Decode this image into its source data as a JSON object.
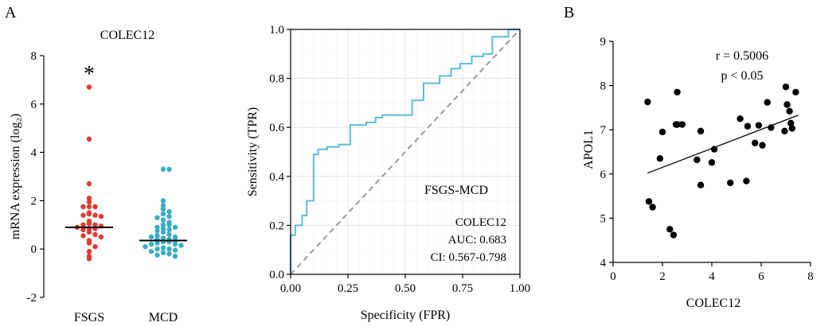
{
  "panel_labels": {
    "a": "A",
    "b": "B"
  },
  "chart_data": [
    {
      "type": "scatter",
      "name": "dot-plot",
      "title": "COLEC12",
      "ylabel": "mRNA expression (log₂)",
      "xlabel": "",
      "categories": [
        "FSGS",
        "MCD"
      ],
      "ylim": [
        -2,
        8
      ],
      "yticks": [
        "-2",
        "0",
        "2",
        "4",
        "6",
        "8"
      ],
      "annotation": "*",
      "series": [
        {
          "name": "FSGS",
          "color": "#e03a30",
          "median": 0.9,
          "values": [
            6.7,
            4.55,
            2.7,
            2.1,
            1.95,
            1.75,
            1.75,
            1.75,
            1.5,
            1.45,
            1.4,
            1.4,
            1.35,
            1.15,
            1.05,
            1.0,
            1.0,
            0.95,
            0.9,
            0.85,
            0.85,
            0.8,
            0.7,
            0.6,
            0.55,
            0.5,
            0.35,
            0.25,
            0.1,
            -0.1,
            -0.3,
            -0.4
          ]
        },
        {
          "name": "MCD",
          "color": "#3aaec2",
          "median": 0.35,
          "values": [
            3.3,
            3.3,
            2.0,
            1.8,
            1.65,
            1.55,
            1.45,
            1.35,
            1.3,
            1.2,
            1.1,
            1.0,
            1.0,
            0.9,
            0.9,
            0.85,
            0.8,
            0.75,
            0.7,
            0.6,
            0.55,
            0.5,
            0.5,
            0.45,
            0.4,
            0.4,
            0.35,
            0.3,
            0.3,
            0.25,
            0.2,
            0.2,
            0.15,
            0.1,
            0.05,
            0.0,
            0.0,
            -0.05,
            -0.1,
            -0.15,
            -0.2,
            -0.25,
            -0.3
          ]
        }
      ]
    },
    {
      "type": "line",
      "name": "roc",
      "title": "",
      "xlabel": "Specificity (FPR)",
      "ylabel": "Sensitivity (TPR)",
      "xlim": [
        0,
        1
      ],
      "ylim": [
        0,
        1
      ],
      "xticks": [
        "0.00",
        "0.25",
        "0.50",
        "0.75",
        "1.00"
      ],
      "yticks": [
        "0.0",
        "0.2",
        "0.4",
        "0.6",
        "0.8",
        "1.0"
      ],
      "grid": true,
      "annotation_title": "FSGS-MCD",
      "annotation_lines": [
        "COLEC12",
        "AUC: 0.683",
        "CI: 0.567-0.798"
      ],
      "series": [
        {
          "name": "COLEC12",
          "color": "#5bbcd8",
          "x": [
            0,
            0,
            0.02,
            0.02,
            0.05,
            0.05,
            0.07,
            0.07,
            0.1,
            0.1,
            0.12,
            0.12,
            0.16,
            0.16,
            0.21,
            0.21,
            0.26,
            0.26,
            0.33,
            0.33,
            0.37,
            0.37,
            0.4,
            0.4,
            0.53,
            0.53,
            0.58,
            0.58,
            0.65,
            0.65,
            0.7,
            0.7,
            0.74,
            0.74,
            0.79,
            0.79,
            0.84,
            0.84,
            0.88,
            0.88,
            0.95,
            0.95,
            1.0
          ],
          "y": [
            0,
            0.16,
            0.16,
            0.2,
            0.2,
            0.24,
            0.24,
            0.3,
            0.3,
            0.49,
            0.49,
            0.51,
            0.51,
            0.52,
            0.52,
            0.53,
            0.53,
            0.61,
            0.61,
            0.62,
            0.62,
            0.64,
            0.64,
            0.65,
            0.65,
            0.71,
            0.71,
            0.78,
            0.78,
            0.81,
            0.81,
            0.84,
            0.84,
            0.86,
            0.86,
            0.89,
            0.89,
            0.9,
            0.9,
            0.97,
            0.97,
            1.0,
            1.0
          ]
        },
        {
          "name": "reference",
          "color": "#999999",
          "x": [
            0,
            1
          ],
          "y": [
            0,
            1
          ]
        }
      ]
    },
    {
      "type": "scatter",
      "name": "correlation",
      "title": "",
      "xlabel": "COLEC12",
      "ylabel": "APOL1",
      "xlim": [
        0,
        8
      ],
      "ylim": [
        4,
        9
      ],
      "xticks": [
        "0",
        "2",
        "4",
        "6",
        "8"
      ],
      "yticks": [
        "4",
        "5",
        "6",
        "7",
        "8",
        "9"
      ],
      "annotation_lines": [
        "r = 0.5006",
        "p < 0.05"
      ],
      "fit_line": {
        "x": [
          1.4,
          7.5
        ],
        "y": [
          6.02,
          7.33
        ]
      },
      "series": [
        {
          "name": "samples",
          "color": "#000000",
          "x": [
            1.4,
            1.45,
            1.6,
            1.9,
            2.0,
            2.3,
            2.45,
            2.55,
            2.6,
            2.6,
            2.8,
            3.4,
            3.55,
            3.55,
            4.0,
            4.1,
            4.75,
            5.15,
            5.4,
            5.45,
            5.75,
            5.9,
            6.05,
            6.25,
            6.4,
            6.95,
            7.0,
            7.05,
            7.15,
            7.2,
            7.25,
            7.4
          ],
          "y": [
            7.63,
            5.38,
            5.25,
            6.35,
            6.95,
            4.75,
            4.62,
            7.12,
            7.85,
            7.12,
            7.12,
            6.32,
            6.97,
            5.75,
            6.26,
            6.56,
            5.8,
            7.25,
            5.84,
            7.08,
            6.7,
            7.1,
            6.65,
            7.62,
            7.05,
            6.97,
            7.97,
            7.57,
            7.42,
            7.15,
            7.03,
            7.85
          ]
        }
      ]
    }
  ]
}
